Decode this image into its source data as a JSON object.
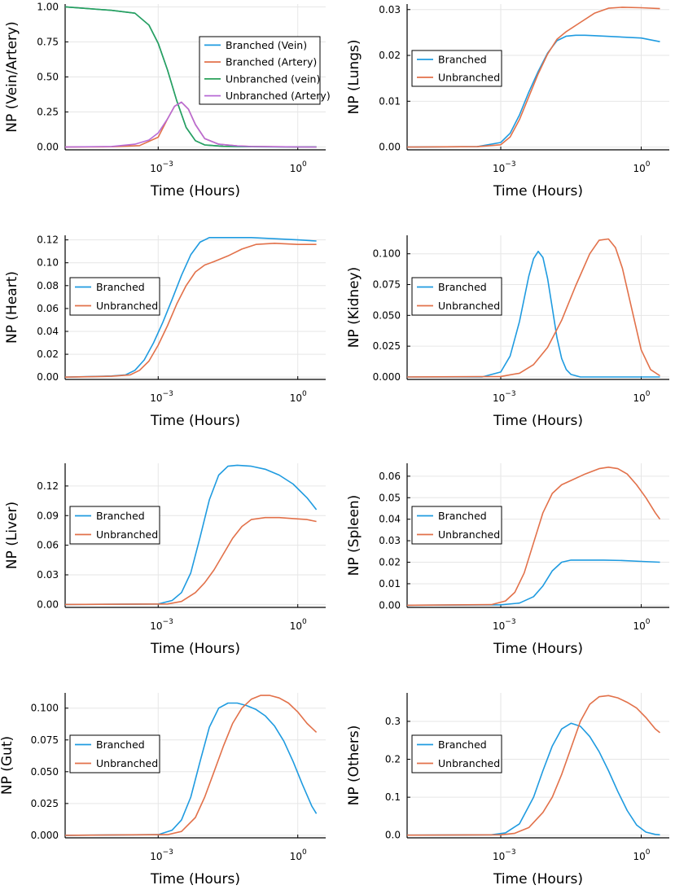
{
  "colors": {
    "branched": "#1f9be0",
    "unbranched": "#e2714a",
    "vein": "#1f9be0",
    "artery": "#e2714a",
    "unbranched_vein": "#2aa15a",
    "unbranched_artery": "#b86bd6",
    "axis": "#000000",
    "grid": "#e6e6e6"
  },
  "chart_data": [
    {
      "type": "line",
      "title": "",
      "xlabel": "Time (Hours)",
      "ylabel": "NP (Vein/Artery)",
      "xscale": "log10",
      "xlim_log10": [
        -5.0,
        0.6
      ],
      "ylim": [
        -0.02,
        1.02
      ],
      "yticks": [
        0.0,
        0.25,
        0.5,
        0.75,
        1.0
      ],
      "ytick_labels": [
        "0.00",
        "0.25",
        "0.50",
        "0.75",
        "1.00"
      ],
      "xtick_exponents": [
        -3,
        0
      ],
      "legend_position": "top-right",
      "series": [
        {
          "name": "Branched (Vein)",
          "color": "#1f9be0",
          "log10_x": [
            -5.0,
            -4.0,
            -3.5,
            -3.2,
            -3.0,
            -2.8,
            -2.6,
            -2.4,
            -2.2,
            -2.0,
            -1.6,
            -1.0,
            0.0,
            0.4
          ],
          "values": [
            1.0,
            0.975,
            0.955,
            0.87,
            0.74,
            0.55,
            0.33,
            0.14,
            0.045,
            0.015,
            0.005,
            0.002,
            0.001,
            0.001
          ]
        },
        {
          "name": "Branched (Artery)",
          "color": "#e2714a",
          "log10_x": [
            -5.0,
            -4.0,
            -3.4,
            -3.0,
            -2.8,
            -2.65,
            -2.5,
            -2.35,
            -2.2,
            -2.0,
            -1.7,
            -1.3,
            -1.0,
            0.0,
            0.4
          ],
          "values": [
            0.0,
            0.002,
            0.01,
            0.07,
            0.2,
            0.29,
            0.32,
            0.27,
            0.16,
            0.06,
            0.02,
            0.008,
            0.004,
            0.001,
            0.0
          ]
        },
        {
          "name": "Unbranched (vein)",
          "color": "#2aa15a",
          "log10_x": [
            -5.0,
            -4.0,
            -3.5,
            -3.2,
            -3.0,
            -2.8,
            -2.6,
            -2.4,
            -2.2,
            -2.0,
            -1.6,
            -1.0,
            0.0,
            0.4
          ],
          "values": [
            1.0,
            0.975,
            0.955,
            0.87,
            0.74,
            0.55,
            0.33,
            0.14,
            0.045,
            0.015,
            0.005,
            0.002,
            0.001,
            0.001
          ]
        },
        {
          "name": "Unbranched (Artery)",
          "color": "#b86bd6",
          "log10_x": [
            -5.0,
            -4.0,
            -3.5,
            -3.2,
            -3.0,
            -2.8,
            -2.65,
            -2.5,
            -2.35,
            -2.2,
            -2.0,
            -1.7,
            -1.3,
            -1.0,
            0.0,
            0.4
          ],
          "values": [
            0.0,
            0.004,
            0.02,
            0.05,
            0.1,
            0.2,
            0.29,
            0.32,
            0.27,
            0.16,
            0.06,
            0.02,
            0.008,
            0.004,
            0.001,
            0.0
          ]
        }
      ]
    },
    {
      "type": "line",
      "title": "",
      "xlabel": "Time (Hours)",
      "ylabel": "NP (Lungs)",
      "xscale": "log10",
      "xlim_log10": [
        -5.0,
        0.6
      ],
      "ylim": [
        -0.0006,
        0.0312
      ],
      "yticks": [
        0.0,
        0.01,
        0.02,
        0.03
      ],
      "ytick_labels": [
        "0.00",
        "0.01",
        "0.02",
        "0.03"
      ],
      "xtick_exponents": [
        -3,
        0
      ],
      "legend_position": "left",
      "series": [
        {
          "name": "Branched",
          "color": "#1f9be0",
          "log10_x": [
            -5.0,
            -3.5,
            -3.0,
            -2.8,
            -2.6,
            -2.4,
            -2.2,
            -2.0,
            -1.8,
            -1.6,
            -1.4,
            -1.2,
            -1.0,
            0.0,
            0.4
          ],
          "values": [
            0.0,
            0.0001,
            0.001,
            0.003,
            0.007,
            0.012,
            0.0165,
            0.0205,
            0.0232,
            0.0242,
            0.0244,
            0.0244,
            0.0243,
            0.0238,
            0.023
          ]
        },
        {
          "name": "Unbranched",
          "color": "#e2714a",
          "log10_x": [
            -5.0,
            -3.5,
            -3.0,
            -2.8,
            -2.6,
            -2.4,
            -2.2,
            -2.0,
            -1.8,
            -1.6,
            -1.3,
            -1.0,
            -0.7,
            -0.4,
            0.0,
            0.4
          ],
          "values": [
            0.0,
            0.0001,
            0.0005,
            0.0022,
            0.006,
            0.011,
            0.016,
            0.0203,
            0.0235,
            0.0252,
            0.0272,
            0.0292,
            0.0303,
            0.0305,
            0.0304,
            0.0302
          ]
        }
      ]
    },
    {
      "type": "line",
      "title": "",
      "xlabel": "Time (Hours)",
      "ylabel": "NP (Heart)",
      "xscale": "log10",
      "xlim_log10": [
        -5.0,
        0.6
      ],
      "ylim": [
        -0.002,
        0.124
      ],
      "yticks": [
        0.0,
        0.02,
        0.04,
        0.06,
        0.08,
        0.1,
        0.12
      ],
      "ytick_labels": [
        "0.00",
        "0.02",
        "0.04",
        "0.06",
        "0.08",
        "0.10",
        "0.12"
      ],
      "xtick_exponents": [
        -3,
        0
      ],
      "legend_position": "left",
      "series": [
        {
          "name": "Branched",
          "color": "#1f9be0",
          "log10_x": [
            -5.0,
            -4.0,
            -3.7,
            -3.5,
            -3.3,
            -3.1,
            -2.9,
            -2.7,
            -2.5,
            -2.3,
            -2.1,
            -1.9,
            -1.7,
            -1.5,
            -1.0,
            0.0,
            0.4
          ],
          "values": [
            0.0,
            0.001,
            0.002,
            0.006,
            0.015,
            0.03,
            0.048,
            0.068,
            0.089,
            0.107,
            0.118,
            0.122,
            0.122,
            0.122,
            0.122,
            0.12,
            0.119
          ]
        },
        {
          "name": "Unbranched",
          "color": "#e2714a",
          "log10_x": [
            -5.0,
            -4.0,
            -3.6,
            -3.4,
            -3.2,
            -3.0,
            -2.8,
            -2.6,
            -2.4,
            -2.2,
            -2.0,
            -1.8,
            -1.5,
            -1.2,
            -0.9,
            -0.5,
            0.0,
            0.4
          ],
          "values": [
            0.0,
            0.0008,
            0.002,
            0.006,
            0.014,
            0.028,
            0.045,
            0.064,
            0.08,
            0.092,
            0.098,
            0.101,
            0.106,
            0.112,
            0.116,
            0.117,
            0.116,
            0.116
          ]
        }
      ]
    },
    {
      "type": "line",
      "title": "",
      "xlabel": "Time (Hours)",
      "ylabel": "NP (Kidney)",
      "xscale": "log10",
      "xlim_log10": [
        -5.0,
        0.6
      ],
      "ylim": [
        -0.002,
        0.115
      ],
      "yticks": [
        0.0,
        0.025,
        0.05,
        0.075,
        0.1
      ],
      "ytick_labels": [
        "0.000",
        "0.025",
        "0.050",
        "0.075",
        "0.100"
      ],
      "xtick_exponents": [
        -3,
        0
      ],
      "legend_position": "left",
      "series": [
        {
          "name": "Branched",
          "color": "#1f9be0",
          "log10_x": [
            -5.0,
            -3.4,
            -3.0,
            -2.8,
            -2.6,
            -2.4,
            -2.3,
            -2.2,
            -2.1,
            -2.0,
            -1.9,
            -1.8,
            -1.7,
            -1.6,
            -1.5,
            -1.3,
            -1.0,
            0.0,
            0.4
          ],
          "values": [
            0.0,
            0.0,
            0.004,
            0.017,
            0.045,
            0.082,
            0.096,
            0.102,
            0.097,
            0.08,
            0.056,
            0.032,
            0.015,
            0.006,
            0.002,
            0.0,
            0.0,
            0.0,
            0.0
          ]
        },
        {
          "name": "Unbranched",
          "color": "#e2714a",
          "log10_x": [
            -5.0,
            -3.0,
            -2.6,
            -2.3,
            -2.0,
            -1.7,
            -1.4,
            -1.1,
            -0.9,
            -0.7,
            -0.55,
            -0.4,
            -0.2,
            0.0,
            0.2,
            0.4
          ],
          "values": [
            0.0,
            0.0004,
            0.003,
            0.01,
            0.024,
            0.046,
            0.074,
            0.1,
            0.111,
            0.112,
            0.105,
            0.088,
            0.055,
            0.022,
            0.006,
            0.001
          ]
        }
      ]
    },
    {
      "type": "line",
      "title": "",
      "xlabel": "Time (Hours)",
      "ylabel": "NP (Liver)",
      "xscale": "log10",
      "xlim_log10": [
        -5.0,
        0.6
      ],
      "ylim": [
        -0.003,
        0.143
      ],
      "yticks": [
        0.0,
        0.03,
        0.06,
        0.09,
        0.12
      ],
      "ytick_labels": [
        "0.00",
        "0.03",
        "0.06",
        "0.09",
        "0.12"
      ],
      "xtick_exponents": [
        -3,
        0
      ],
      "legend_position": "left",
      "series": [
        {
          "name": "Branched",
          "color": "#1f9be0",
          "log10_x": [
            -5.0,
            -3.0,
            -2.7,
            -2.5,
            -2.3,
            -2.1,
            -1.9,
            -1.7,
            -1.5,
            -1.3,
            -1.0,
            -0.7,
            -0.4,
            -0.1,
            0.2,
            0.4
          ],
          "values": [
            0.0,
            0.0005,
            0.004,
            0.012,
            0.032,
            0.068,
            0.106,
            0.131,
            0.14,
            0.141,
            0.14,
            0.137,
            0.131,
            0.122,
            0.108,
            0.096
          ]
        },
        {
          "name": "Unbranched",
          "color": "#e2714a",
          "log10_x": [
            -5.0,
            -2.8,
            -2.5,
            -2.2,
            -2.0,
            -1.8,
            -1.6,
            -1.4,
            -1.2,
            -1.0,
            -0.7,
            -0.4,
            -0.1,
            0.2,
            0.4
          ],
          "values": [
            0.0,
            0.0005,
            0.003,
            0.012,
            0.022,
            0.035,
            0.051,
            0.067,
            0.079,
            0.086,
            0.088,
            0.088,
            0.087,
            0.086,
            0.084
          ]
        }
      ]
    },
    {
      "type": "line",
      "title": "",
      "xlabel": "Time (Hours)",
      "ylabel": "NP (Spleen)",
      "xscale": "log10",
      "xlim_log10": [
        -5.0,
        0.6
      ],
      "ylim": [
        -0.001,
        0.066
      ],
      "yticks": [
        0.0,
        0.01,
        0.02,
        0.03,
        0.04,
        0.05,
        0.06
      ],
      "ytick_labels": [
        "0.00",
        "0.01",
        "0.02",
        "0.03",
        "0.04",
        "0.05",
        "0.06"
      ],
      "xtick_exponents": [
        -3,
        0
      ],
      "legend_position": "left",
      "series": [
        {
          "name": "Branched",
          "color": "#1f9be0",
          "log10_x": [
            -5.0,
            -3.0,
            -2.6,
            -2.3,
            -2.1,
            -1.9,
            -1.7,
            -1.5,
            -1.2,
            -0.8,
            -0.4,
            0.0,
            0.4
          ],
          "values": [
            0.0,
            0.0002,
            0.001,
            0.004,
            0.009,
            0.016,
            0.02,
            0.021,
            0.021,
            0.021,
            0.0208,
            0.0204,
            0.02
          ]
        },
        {
          "name": "Unbranched",
          "color": "#e2714a",
          "log10_x": [
            -5.0,
            -3.2,
            -2.9,
            -2.7,
            -2.5,
            -2.3,
            -2.1,
            -1.9,
            -1.7,
            -1.5,
            -1.2,
            -0.9,
            -0.7,
            -0.5,
            -0.3,
            -0.1,
            0.1,
            0.3,
            0.4
          ],
          "values": [
            0.0,
            0.0003,
            0.002,
            0.006,
            0.015,
            0.029,
            0.043,
            0.052,
            0.056,
            0.058,
            0.061,
            0.0635,
            0.0642,
            0.0635,
            0.061,
            0.056,
            0.05,
            0.043,
            0.04
          ]
        }
      ]
    },
    {
      "type": "line",
      "title": "",
      "xlabel": "Time (Hours)",
      "ylabel": "NP (Gut)",
      "xscale": "log10",
      "xlim_log10": [
        -5.0,
        0.6
      ],
      "ylim": [
        -0.002,
        0.112
      ],
      "yticks": [
        0.0,
        0.025,
        0.05,
        0.075,
        0.1
      ],
      "ytick_labels": [
        "0.000",
        "0.025",
        "0.050",
        "0.075",
        "0.100"
      ],
      "xtick_exponents": [
        -3,
        0
      ],
      "legend_position": "left",
      "series": [
        {
          "name": "Branched",
          "color": "#1f9be0",
          "log10_x": [
            -5.0,
            -3.0,
            -2.7,
            -2.5,
            -2.3,
            -2.1,
            -1.9,
            -1.7,
            -1.5,
            -1.3,
            -1.1,
            -0.9,
            -0.7,
            -0.5,
            -0.3,
            -0.1,
            0.1,
            0.3,
            0.4
          ],
          "values": [
            0.0,
            0.0005,
            0.004,
            0.012,
            0.03,
            0.058,
            0.085,
            0.1,
            0.104,
            0.104,
            0.102,
            0.099,
            0.094,
            0.086,
            0.074,
            0.058,
            0.04,
            0.023,
            0.017
          ]
        },
        {
          "name": "Unbranched",
          "color": "#e2714a",
          "log10_x": [
            -5.0,
            -2.8,
            -2.5,
            -2.2,
            -2.0,
            -1.8,
            -1.6,
            -1.4,
            -1.2,
            -1.0,
            -0.8,
            -0.6,
            -0.4,
            -0.2,
            0.0,
            0.2,
            0.4
          ],
          "values": [
            0.0,
            0.0005,
            0.003,
            0.014,
            0.03,
            0.05,
            0.07,
            0.088,
            0.1,
            0.107,
            0.11,
            0.11,
            0.108,
            0.104,
            0.097,
            0.088,
            0.081
          ]
        }
      ]
    },
    {
      "type": "line",
      "title": "",
      "xlabel": "Time (Hours)",
      "ylabel": "NP (Others)",
      "xscale": "log10",
      "xlim_log10": [
        -5.0,
        0.6
      ],
      "ylim": [
        -0.007,
        0.375
      ],
      "yticks": [
        0.0,
        0.1,
        0.2,
        0.3
      ],
      "ytick_labels": [
        "0.0",
        "0.1",
        "0.2",
        "0.3"
      ],
      "xtick_exponents": [
        -3,
        0
      ],
      "legend_position": "left",
      "series": [
        {
          "name": "Branched",
          "color": "#1f9be0",
          "log10_x": [
            -5.0,
            -3.2,
            -2.9,
            -2.6,
            -2.3,
            -2.1,
            -1.9,
            -1.7,
            -1.5,
            -1.3,
            -1.1,
            -0.9,
            -0.7,
            -0.5,
            -0.3,
            -0.1,
            0.1,
            0.3,
            0.4
          ],
          "values": [
            0.0,
            0.001,
            0.006,
            0.03,
            0.1,
            0.17,
            0.235,
            0.28,
            0.295,
            0.287,
            0.26,
            0.22,
            0.17,
            0.115,
            0.065,
            0.027,
            0.008,
            0.002,
            0.001
          ]
        },
        {
          "name": "Unbranched",
          "color": "#e2714a",
          "log10_x": [
            -5.0,
            -3.0,
            -2.7,
            -2.4,
            -2.1,
            -1.9,
            -1.7,
            -1.5,
            -1.3,
            -1.1,
            -0.9,
            -0.7,
            -0.5,
            -0.3,
            -0.1,
            0.1,
            0.3,
            0.4
          ],
          "values": [
            0.0,
            0.001,
            0.005,
            0.02,
            0.06,
            0.1,
            0.16,
            0.23,
            0.3,
            0.345,
            0.365,
            0.368,
            0.362,
            0.35,
            0.335,
            0.31,
            0.28,
            0.27
          ]
        }
      ]
    }
  ]
}
